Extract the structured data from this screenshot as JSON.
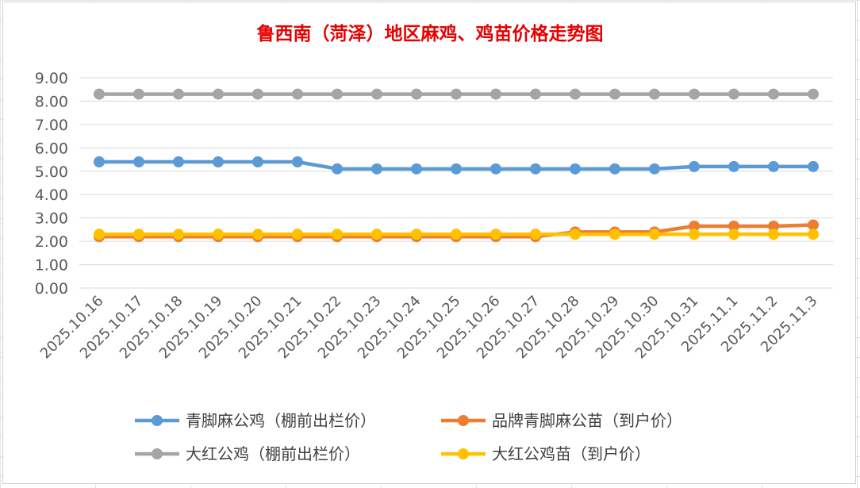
{
  "chart_data": {
    "type": "line",
    "title": "鲁西南（菏泽）地区麻鸡、鸡苗价格走势图",
    "xlabel": "",
    "ylabel": "",
    "ylim": [
      0,
      9
    ],
    "yticks": [
      "0.00",
      "1.00",
      "2.00",
      "3.00",
      "4.00",
      "5.00",
      "6.00",
      "7.00",
      "8.00",
      "9.00"
    ],
    "grid": true,
    "legend_position": "bottom",
    "categories": [
      "2025.10.16",
      "2025.10.17",
      "2025.10.18",
      "2025.10.19",
      "2025.10.20",
      "2025.10.21",
      "2025.10.22",
      "2025.10.23",
      "2025.10.24",
      "2025.10.25",
      "2025.10.26",
      "2025.10.27",
      "2025.10.28",
      "2025.10.29",
      "2025.10.30",
      "2025.10.31",
      "2025.11.1",
      "2025.11.2",
      "2025.11.3"
    ],
    "series": [
      {
        "name": "青脚麻公鸡（棚前出栏价）",
        "color": "#5b9bd5",
        "values": [
          5.4,
          5.4,
          5.4,
          5.4,
          5.4,
          5.4,
          5.1,
          5.1,
          5.1,
          5.1,
          5.1,
          5.1,
          5.1,
          5.1,
          5.1,
          5.2,
          5.2,
          5.2,
          5.2
        ]
      },
      {
        "name": "品牌青脚麻公苗（到户价）",
        "color": "#ed7d31",
        "values": [
          2.2,
          2.2,
          2.2,
          2.2,
          2.2,
          2.2,
          2.2,
          2.2,
          2.2,
          2.2,
          2.2,
          2.2,
          2.4,
          2.4,
          2.4,
          2.65,
          2.65,
          2.65,
          2.7
        ]
      },
      {
        "name": "大红公鸡（棚前出栏价）",
        "color": "#a5a5a5",
        "values": [
          8.3,
          8.3,
          8.3,
          8.3,
          8.3,
          8.3,
          8.3,
          8.3,
          8.3,
          8.3,
          8.3,
          8.3,
          8.3,
          8.3,
          8.3,
          8.3,
          8.3,
          8.3,
          8.3
        ]
      },
      {
        "name": "大红公鸡苗（到户价）",
        "color": "#ffc000",
        "values": [
          2.3,
          2.3,
          2.3,
          2.3,
          2.3,
          2.3,
          2.3,
          2.3,
          2.3,
          2.3,
          2.3,
          2.3,
          2.3,
          2.3,
          2.3,
          2.3,
          2.3,
          2.3,
          2.3
        ]
      }
    ],
    "draw_order": [
      1,
      0,
      2,
      3
    ]
  }
}
